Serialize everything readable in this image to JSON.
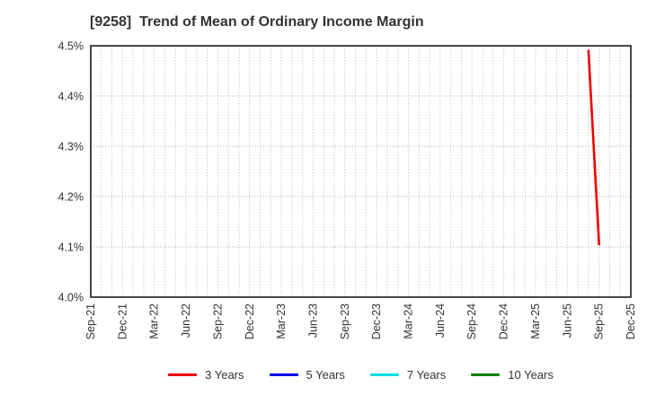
{
  "title": "[9258]  Trend of Mean of Ordinary Income Margin",
  "chart_data": {
    "type": "line",
    "title": "[9258]  Trend of Mean of Ordinary Income Margin",
    "xlabel": "",
    "ylabel": "",
    "x_axis": {
      "start_month": "Sep-21",
      "end_month": "Dec-25",
      "tick_labels": [
        "Sep-21",
        "Dec-21",
        "Mar-22",
        "Jun-22",
        "Sep-22",
        "Dec-22",
        "Mar-23",
        "Jun-23",
        "Sep-23",
        "Dec-23",
        "Mar-24",
        "Jun-24",
        "Sep-24",
        "Dec-24",
        "Mar-25",
        "Jun-25",
        "Sep-25",
        "Dec-25"
      ],
      "minor_grid": "monthly"
    },
    "y_axis": {
      "min": 4.0,
      "max": 4.5,
      "tick_step": 0.1,
      "tick_labels": [
        "4.0%",
        "4.1%",
        "4.2%",
        "4.3%",
        "4.4%",
        "4.5%"
      ]
    },
    "grid": true,
    "legend_position": "bottom",
    "series": [
      {
        "name": "3 Years",
        "color": "#ee0000",
        "points": [
          {
            "month": "Aug-25",
            "value": 4.49
          },
          {
            "month": "Sep-25",
            "value": 4.105
          }
        ]
      },
      {
        "name": "5 Years",
        "color": "#0000ee",
        "points": []
      },
      {
        "name": "7 Years",
        "color": "#00dde0",
        "points": []
      },
      {
        "name": "10 Years",
        "color": "#008000",
        "points": []
      }
    ]
  },
  "colors": {
    "frame": "#1a1a1a",
    "grid_vertical": "#b8b8b8",
    "grid_horizontal": "#a8a8a8",
    "tick_label": "#333333",
    "title": "#333333"
  }
}
